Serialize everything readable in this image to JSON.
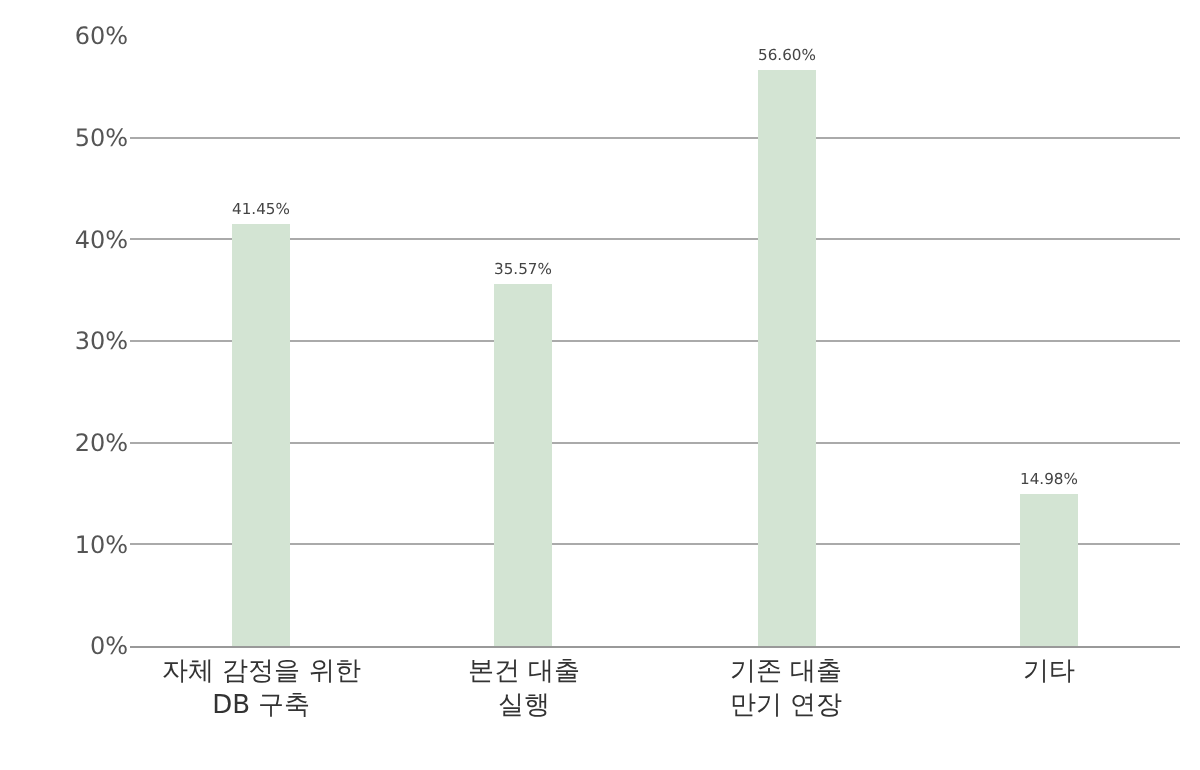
{
  "chart_data": {
    "type": "bar",
    "categories": [
      "자체 감정을 위한\nDB 구축",
      "본건 대출\n실행",
      "기존 대출\n만기 연장",
      "기타"
    ],
    "values": [
      41.45,
      35.57,
      56.6,
      14.98
    ],
    "value_labels": [
      "41.45%",
      "35.57%",
      "56.60%",
      "14.98%"
    ],
    "color": "#d3e4d3",
    "ylim": [
      0,
      60
    ],
    "yticks": [
      {
        "value": 0,
        "label": "0%"
      },
      {
        "value": 10,
        "label": "10%"
      },
      {
        "value": 20,
        "label": "20%"
      },
      {
        "value": 30,
        "label": "30%"
      },
      {
        "value": 40,
        "label": "40%"
      },
      {
        "value": 50,
        "label": "50%"
      },
      {
        "value": 60,
        "label": "60%"
      }
    ],
    "grid": "y"
  }
}
